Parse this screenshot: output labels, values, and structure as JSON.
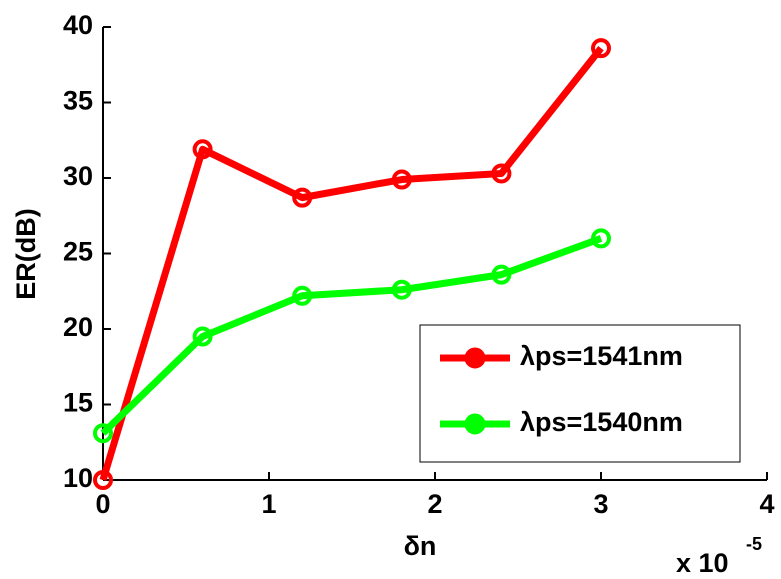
{
  "chart_data": {
    "type": "line",
    "x_label": "δn",
    "y_label": "ER(dB)",
    "x_multiplier": {
      "base": "x 10",
      "exponent": "-5"
    },
    "xlim": [
      0,
      4
    ],
    "xticks": [
      0,
      1,
      2,
      3,
      4
    ],
    "ylim": [
      10,
      40
    ],
    "yticks": [
      10,
      15,
      20,
      25,
      30,
      35,
      40
    ],
    "legend": "lower right",
    "x": [
      0,
      0.6,
      1.2,
      1.8,
      2.4,
      3.0
    ],
    "series": [
      {
        "name": "λps=1541nm",
        "color": "#ff0000",
        "values": [
          10,
          31.9,
          28.7,
          29.9,
          30.3,
          38.6
        ]
      },
      {
        "name": "λps=1540nm",
        "color": "#00ff00",
        "values": [
          13.1,
          19.5,
          22.2,
          22.6,
          23.6,
          26.0
        ]
      }
    ]
  }
}
